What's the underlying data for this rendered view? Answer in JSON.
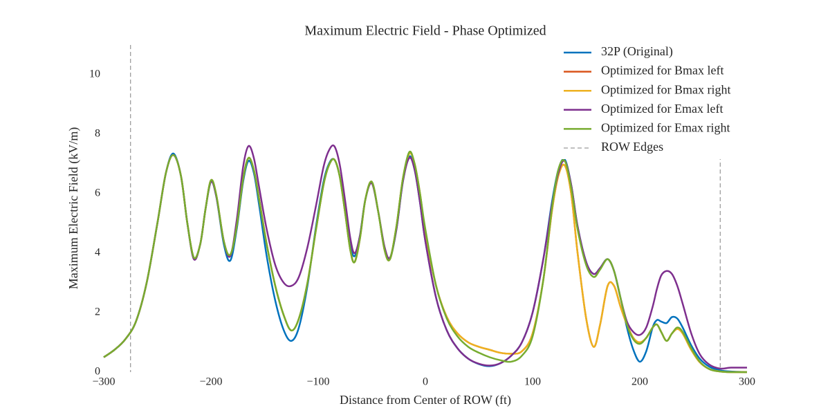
{
  "chart_data": {
    "type": "line",
    "title": "Maximum Electric Field - Phase Optimized",
    "xlabel": "Distance from Center of ROW (ft)",
    "ylabel": "Maximum Electric Field (kV/m)",
    "xlim": [
      -300,
      300
    ],
    "ylim": [
      0,
      11
    ],
    "xticks": [
      {
        "value": -300,
        "label": "−300"
      },
      {
        "value": -200,
        "label": "−200"
      },
      {
        "value": -100,
        "label": "−100"
      },
      0,
      100,
      200,
      300
    ],
    "yticks": [
      0,
      2,
      4,
      6,
      8,
      10
    ],
    "grid": false,
    "legend": "upper right",
    "x": [
      -300,
      -290,
      -280,
      -270,
      -260,
      -250,
      -242,
      -235,
      -228,
      -222,
      -216,
      -210,
      -205,
      -200,
      -195,
      -188,
      -182,
      -176,
      -170,
      -165,
      -160,
      -155,
      -148,
      -140,
      -132,
      -125,
      -118,
      -110,
      -102,
      -95,
      -90,
      -85,
      -80,
      -75,
      -70,
      -66,
      -61,
      -56,
      -50,
      -44,
      -38,
      -33,
      -27,
      -21,
      -15,
      -10,
      -5,
      0,
      10,
      20,
      30,
      40,
      50,
      60,
      70,
      80,
      90,
      100,
      110,
      118,
      124,
      130,
      136,
      142,
      150,
      157,
      163,
      170,
      176,
      182,
      188,
      194,
      200,
      206,
      212,
      216,
      220,
      225,
      230,
      235,
      240,
      248,
      256,
      265,
      275,
      285,
      300
    ],
    "series": [
      {
        "name": "32P (Original)",
        "color": "#0072bd",
        "values": [
          0.5,
          0.75,
          1.1,
          1.7,
          3.0,
          5.0,
          6.7,
          7.35,
          6.6,
          5.0,
          3.85,
          4.3,
          5.5,
          6.4,
          5.9,
          4.3,
          3.75,
          4.8,
          6.4,
          7.1,
          6.7,
          5.6,
          3.9,
          2.4,
          1.4,
          1.05,
          1.5,
          2.9,
          4.9,
          6.4,
          7.0,
          7.15,
          6.6,
          5.5,
          4.3,
          3.9,
          4.6,
          5.8,
          6.4,
          5.4,
          4.1,
          3.8,
          4.8,
          6.4,
          7.25,
          6.8,
          5.7,
          4.4,
          2.5,
          1.4,
          0.8,
          0.45,
          0.27,
          0.2,
          0.3,
          0.55,
          1.0,
          2.0,
          3.8,
          5.7,
          6.8,
          7.15,
          6.3,
          4.9,
          3.7,
          3.3,
          3.5,
          3.8,
          3.4,
          2.5,
          1.5,
          0.75,
          0.35,
          0.7,
          1.5,
          1.75,
          1.7,
          1.65,
          1.85,
          1.8,
          1.5,
          0.9,
          0.45,
          0.18,
          0.06,
          0.02,
          0.0
        ]
      },
      {
        "name": "Optimized for Bmax left",
        "color": "#d95319",
        "values": [
          0.5,
          0.75,
          1.1,
          1.7,
          3.0,
          5.0,
          6.7,
          7.3,
          6.6,
          5.0,
          3.85,
          4.3,
          5.5,
          6.45,
          5.95,
          4.4,
          3.95,
          4.9,
          6.5,
          7.2,
          6.8,
          5.8,
          4.3,
          2.9,
          1.9,
          1.4,
          1.8,
          3.0,
          4.8,
          6.3,
          6.95,
          7.15,
          6.6,
          5.4,
          4.1,
          3.7,
          4.5,
          5.8,
          6.4,
          5.4,
          4.1,
          3.8,
          4.9,
          6.5,
          7.35,
          7.0,
          6.0,
          4.7,
          2.9,
          1.85,
          1.3,
          1.0,
          0.85,
          0.75,
          0.65,
          0.62,
          0.7,
          1.3,
          3.1,
          5.4,
          6.6,
          6.95,
          6.0,
          4.0,
          1.8,
          0.85,
          1.6,
          2.9,
          2.9,
          2.2,
          1.6,
          1.15,
          1.0,
          1.15,
          1.5,
          1.6,
          1.35,
          1.05,
          1.3,
          1.45,
          1.3,
          0.75,
          0.33,
          0.1,
          0.02,
          0.0,
          0.0
        ]
      },
      {
        "name": "Optimized for Bmax right",
        "color": "#edb120",
        "values": [
          0.5,
          0.75,
          1.1,
          1.7,
          3.0,
          5.0,
          6.7,
          7.3,
          6.6,
          5.0,
          3.85,
          4.3,
          5.5,
          6.45,
          5.95,
          4.4,
          3.95,
          4.9,
          6.5,
          7.2,
          6.8,
          5.8,
          4.3,
          2.9,
          1.9,
          1.4,
          1.8,
          3.0,
          4.8,
          6.3,
          6.95,
          7.15,
          6.6,
          5.4,
          4.1,
          3.7,
          4.5,
          5.8,
          6.4,
          5.4,
          4.1,
          3.8,
          4.9,
          6.5,
          7.35,
          7.0,
          6.0,
          4.7,
          2.9,
          1.85,
          1.3,
          1.0,
          0.85,
          0.75,
          0.65,
          0.62,
          0.7,
          1.3,
          3.1,
          5.4,
          6.6,
          6.95,
          6.0,
          4.0,
          1.8,
          0.85,
          1.6,
          2.9,
          2.9,
          2.2,
          1.6,
          1.15,
          1.0,
          1.15,
          1.5,
          1.6,
          1.35,
          1.05,
          1.3,
          1.45,
          1.3,
          0.75,
          0.33,
          0.1,
          0.02,
          0.0,
          0.0
        ]
      },
      {
        "name": "Optimized for Emax left",
        "color": "#7e2f8e",
        "values": [
          0.5,
          0.75,
          1.1,
          1.7,
          3.0,
          5.0,
          6.7,
          7.3,
          6.6,
          5.0,
          3.8,
          4.3,
          5.5,
          6.4,
          5.9,
          4.4,
          3.9,
          5.1,
          6.9,
          7.6,
          7.2,
          6.2,
          4.8,
          3.6,
          3.0,
          2.9,
          3.2,
          4.2,
          5.6,
          6.9,
          7.45,
          7.6,
          7.0,
          5.8,
          4.5,
          4.0,
          4.6,
          5.8,
          6.35,
          5.4,
          4.2,
          3.85,
          4.8,
          6.4,
          7.2,
          6.8,
          5.7,
          4.4,
          2.5,
          1.4,
          0.8,
          0.45,
          0.28,
          0.22,
          0.3,
          0.55,
          1.0,
          2.0,
          3.8,
          5.6,
          6.7,
          7.1,
          6.3,
          4.9,
          3.7,
          3.3,
          3.5,
          3.8,
          3.4,
          2.5,
          1.7,
          1.35,
          1.25,
          1.5,
          2.2,
          2.8,
          3.25,
          3.4,
          3.3,
          2.9,
          2.3,
          1.3,
          0.6,
          0.25,
          0.12,
          0.15,
          0.15
        ]
      },
      {
        "name": "Optimized for Emax right",
        "color": "#77ac30",
        "values": [
          0.5,
          0.75,
          1.1,
          1.7,
          3.0,
          5.0,
          6.7,
          7.3,
          6.6,
          5.0,
          3.85,
          4.3,
          5.5,
          6.45,
          5.95,
          4.4,
          3.95,
          4.9,
          6.5,
          7.2,
          6.8,
          5.8,
          4.3,
          2.9,
          1.9,
          1.4,
          1.8,
          3.0,
          4.8,
          6.3,
          6.95,
          7.15,
          6.6,
          5.4,
          4.1,
          3.7,
          4.5,
          5.8,
          6.4,
          5.4,
          4.1,
          3.8,
          4.9,
          6.5,
          7.4,
          7.0,
          6.0,
          4.8,
          2.9,
          1.8,
          1.2,
          0.85,
          0.65,
          0.5,
          0.4,
          0.35,
          0.55,
          1.2,
          3.1,
          5.5,
          6.8,
          7.1,
          6.2,
          4.8,
          3.6,
          3.2,
          3.45,
          3.8,
          3.4,
          2.5,
          1.6,
          1.1,
          0.95,
          1.15,
          1.5,
          1.6,
          1.35,
          1.05,
          1.3,
          1.5,
          1.35,
          0.8,
          0.35,
          0.1,
          0.02,
          0.0,
          0.0
        ]
      }
    ],
    "row_edges": {
      "name": "ROW Edges",
      "color": "#808080",
      "x": [
        -275,
        275
      ]
    }
  }
}
